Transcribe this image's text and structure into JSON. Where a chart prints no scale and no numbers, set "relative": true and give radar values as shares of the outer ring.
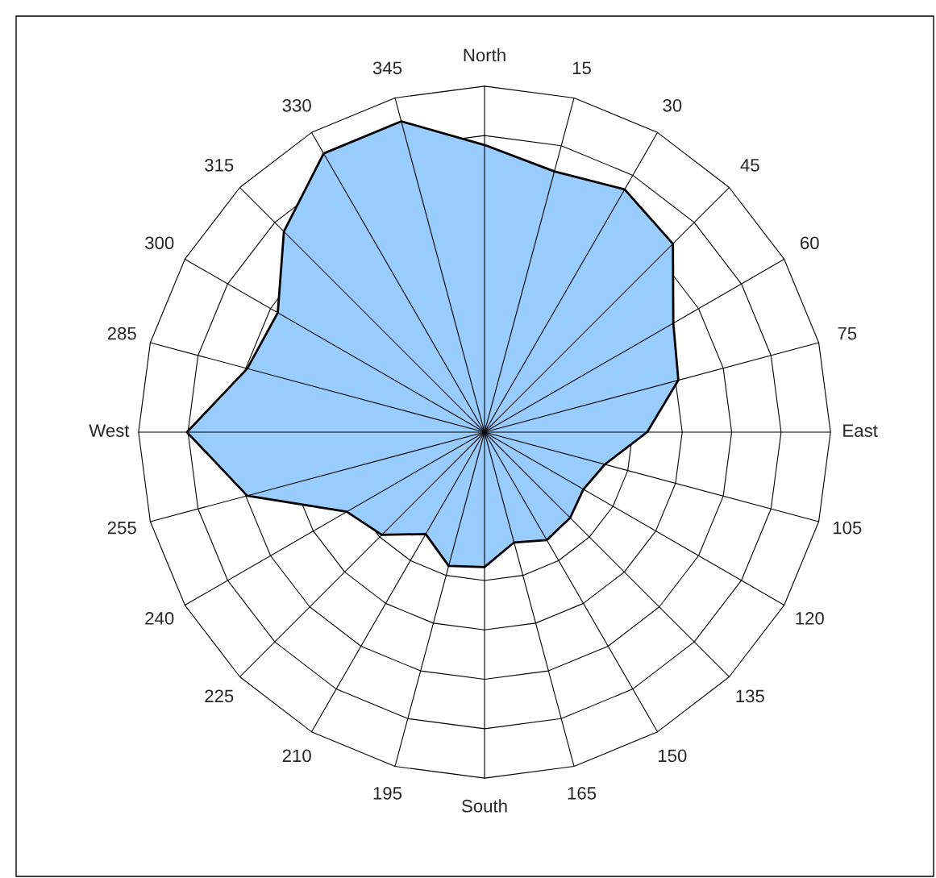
{
  "chart_data": {
    "type": "radar",
    "relative": true,
    "grid": true,
    "categories": [
      "North",
      "15",
      "30",
      "45",
      "60",
      "75",
      "East",
      "105",
      "120",
      "135",
      "150",
      "165",
      "South",
      "195",
      "210",
      "225",
      "240",
      "255",
      "West",
      "285",
      "300",
      "315",
      "330",
      "345"
    ],
    "series": [
      {
        "color": "#99ccff",
        "values": [
          0.83,
          0.78,
          0.81,
          0.77,
          0.63,
          0.58,
          0.47,
          0.36,
          0.33,
          0.35,
          0.36,
          0.33,
          0.39,
          0.4,
          0.34,
          0.42,
          0.46,
          0.71,
          0.86,
          0.71,
          0.69,
          0.82,
          0.93,
          0.93
        ]
      }
    ]
  }
}
